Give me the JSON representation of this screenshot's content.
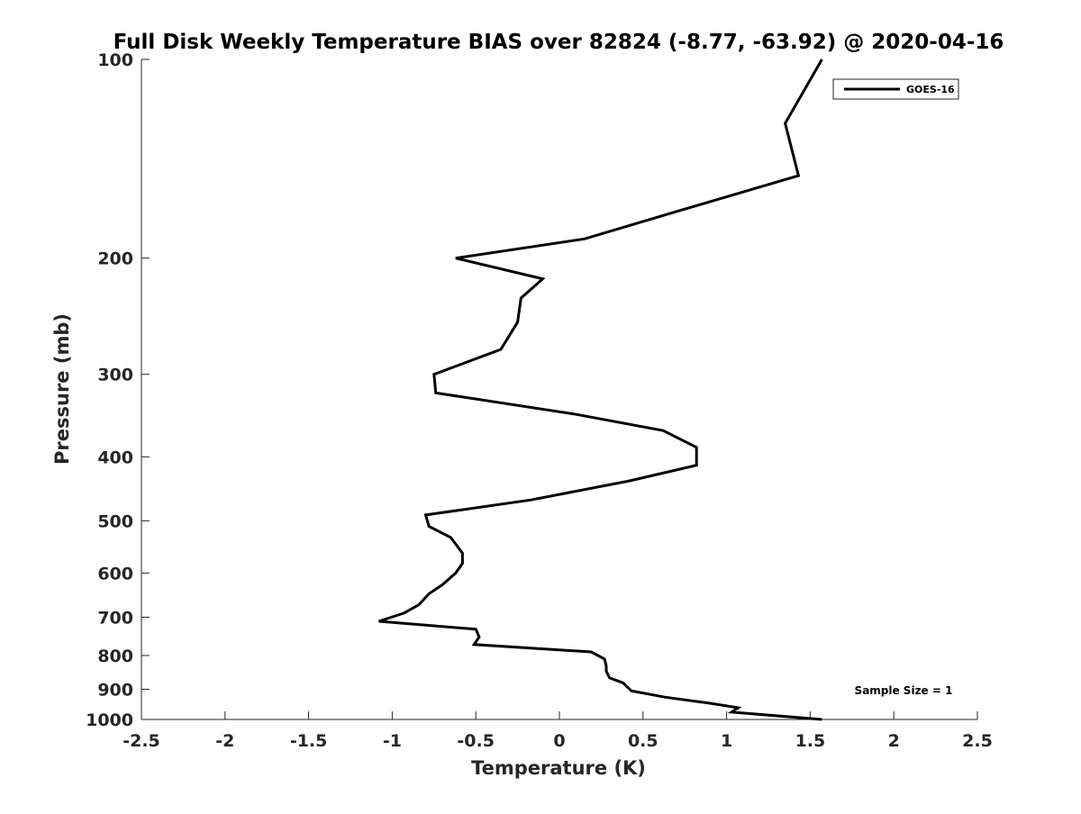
{
  "chart_data": {
    "type": "line",
    "title": "Full Disk Weekly Temperature BIAS over 82824 (-8.77, -63.92) @ 2020-04-16",
    "xlabel": "Temperature (K)",
    "ylabel": "Pressure (mb)",
    "xlim": [
      -2.5,
      2.5
    ],
    "ylim": [
      100,
      1000
    ],
    "y_scale": "log",
    "y_reversed": true,
    "x_ticks": [
      -2.5,
      -2,
      -1.5,
      -1,
      -0.5,
      0,
      0.5,
      1,
      1.5,
      2,
      2.5
    ],
    "x_tick_labels": [
      "-2.5",
      "-2",
      "-1.5",
      "-1",
      "-0.5",
      "0",
      "0.5",
      "1",
      "1.5",
      "2",
      "2.5"
    ],
    "y_ticks": [
      100,
      200,
      300,
      400,
      500,
      600,
      700,
      800,
      900,
      1000
    ],
    "y_tick_labels": [
      "100",
      "200",
      "300",
      "400",
      "500",
      "600",
      "700",
      "800",
      "900",
      "1000"
    ],
    "grid": false,
    "legend": {
      "location": "top-right",
      "entries": [
        "GOES-16"
      ]
    },
    "annotations": [
      "Sample Size = 1"
    ],
    "series": [
      {
        "name": "GOES-16",
        "color": "#000000",
        "points": [
          {
            "x": 1.57,
            "p": 100
          },
          {
            "x": 1.35,
            "p": 125
          },
          {
            "x": 1.43,
            "p": 150
          },
          {
            "x": 0.7,
            "p": 170
          },
          {
            "x": 0.15,
            "p": 187
          },
          {
            "x": -0.62,
            "p": 200
          },
          {
            "x": -0.1,
            "p": 215
          },
          {
            "x": -0.23,
            "p": 230
          },
          {
            "x": -0.25,
            "p": 250
          },
          {
            "x": -0.35,
            "p": 275
          },
          {
            "x": -0.75,
            "p": 300
          },
          {
            "x": -0.74,
            "p": 320
          },
          {
            "x": 0.1,
            "p": 345
          },
          {
            "x": 0.62,
            "p": 365
          },
          {
            "x": 0.82,
            "p": 387
          },
          {
            "x": 0.82,
            "p": 412
          },
          {
            "x": 0.42,
            "p": 435
          },
          {
            "x": -0.17,
            "p": 465
          },
          {
            "x": -0.8,
            "p": 490
          },
          {
            "x": -0.78,
            "p": 510
          },
          {
            "x": -0.65,
            "p": 530
          },
          {
            "x": -0.58,
            "p": 560
          },
          {
            "x": -0.58,
            "p": 580
          },
          {
            "x": -0.62,
            "p": 600
          },
          {
            "x": -0.7,
            "p": 625
          },
          {
            "x": -0.78,
            "p": 645
          },
          {
            "x": -0.84,
            "p": 670
          },
          {
            "x": -0.93,
            "p": 690
          },
          {
            "x": -1.08,
            "p": 710
          },
          {
            "x": -0.5,
            "p": 730
          },
          {
            "x": -0.48,
            "p": 750
          },
          {
            "x": -0.51,
            "p": 770
          },
          {
            "x": 0.19,
            "p": 790
          },
          {
            "x": 0.27,
            "p": 810
          },
          {
            "x": 0.28,
            "p": 830
          },
          {
            "x": 0.28,
            "p": 845
          },
          {
            "x": 0.3,
            "p": 865
          },
          {
            "x": 0.38,
            "p": 880
          },
          {
            "x": 0.43,
            "p": 905
          },
          {
            "x": 0.63,
            "p": 925
          },
          {
            "x": 0.9,
            "p": 945
          },
          {
            "x": 1.07,
            "p": 960
          },
          {
            "x": 1.03,
            "p": 975
          },
          {
            "x": 1.57,
            "p": 1000
          }
        ]
      }
    ]
  }
}
